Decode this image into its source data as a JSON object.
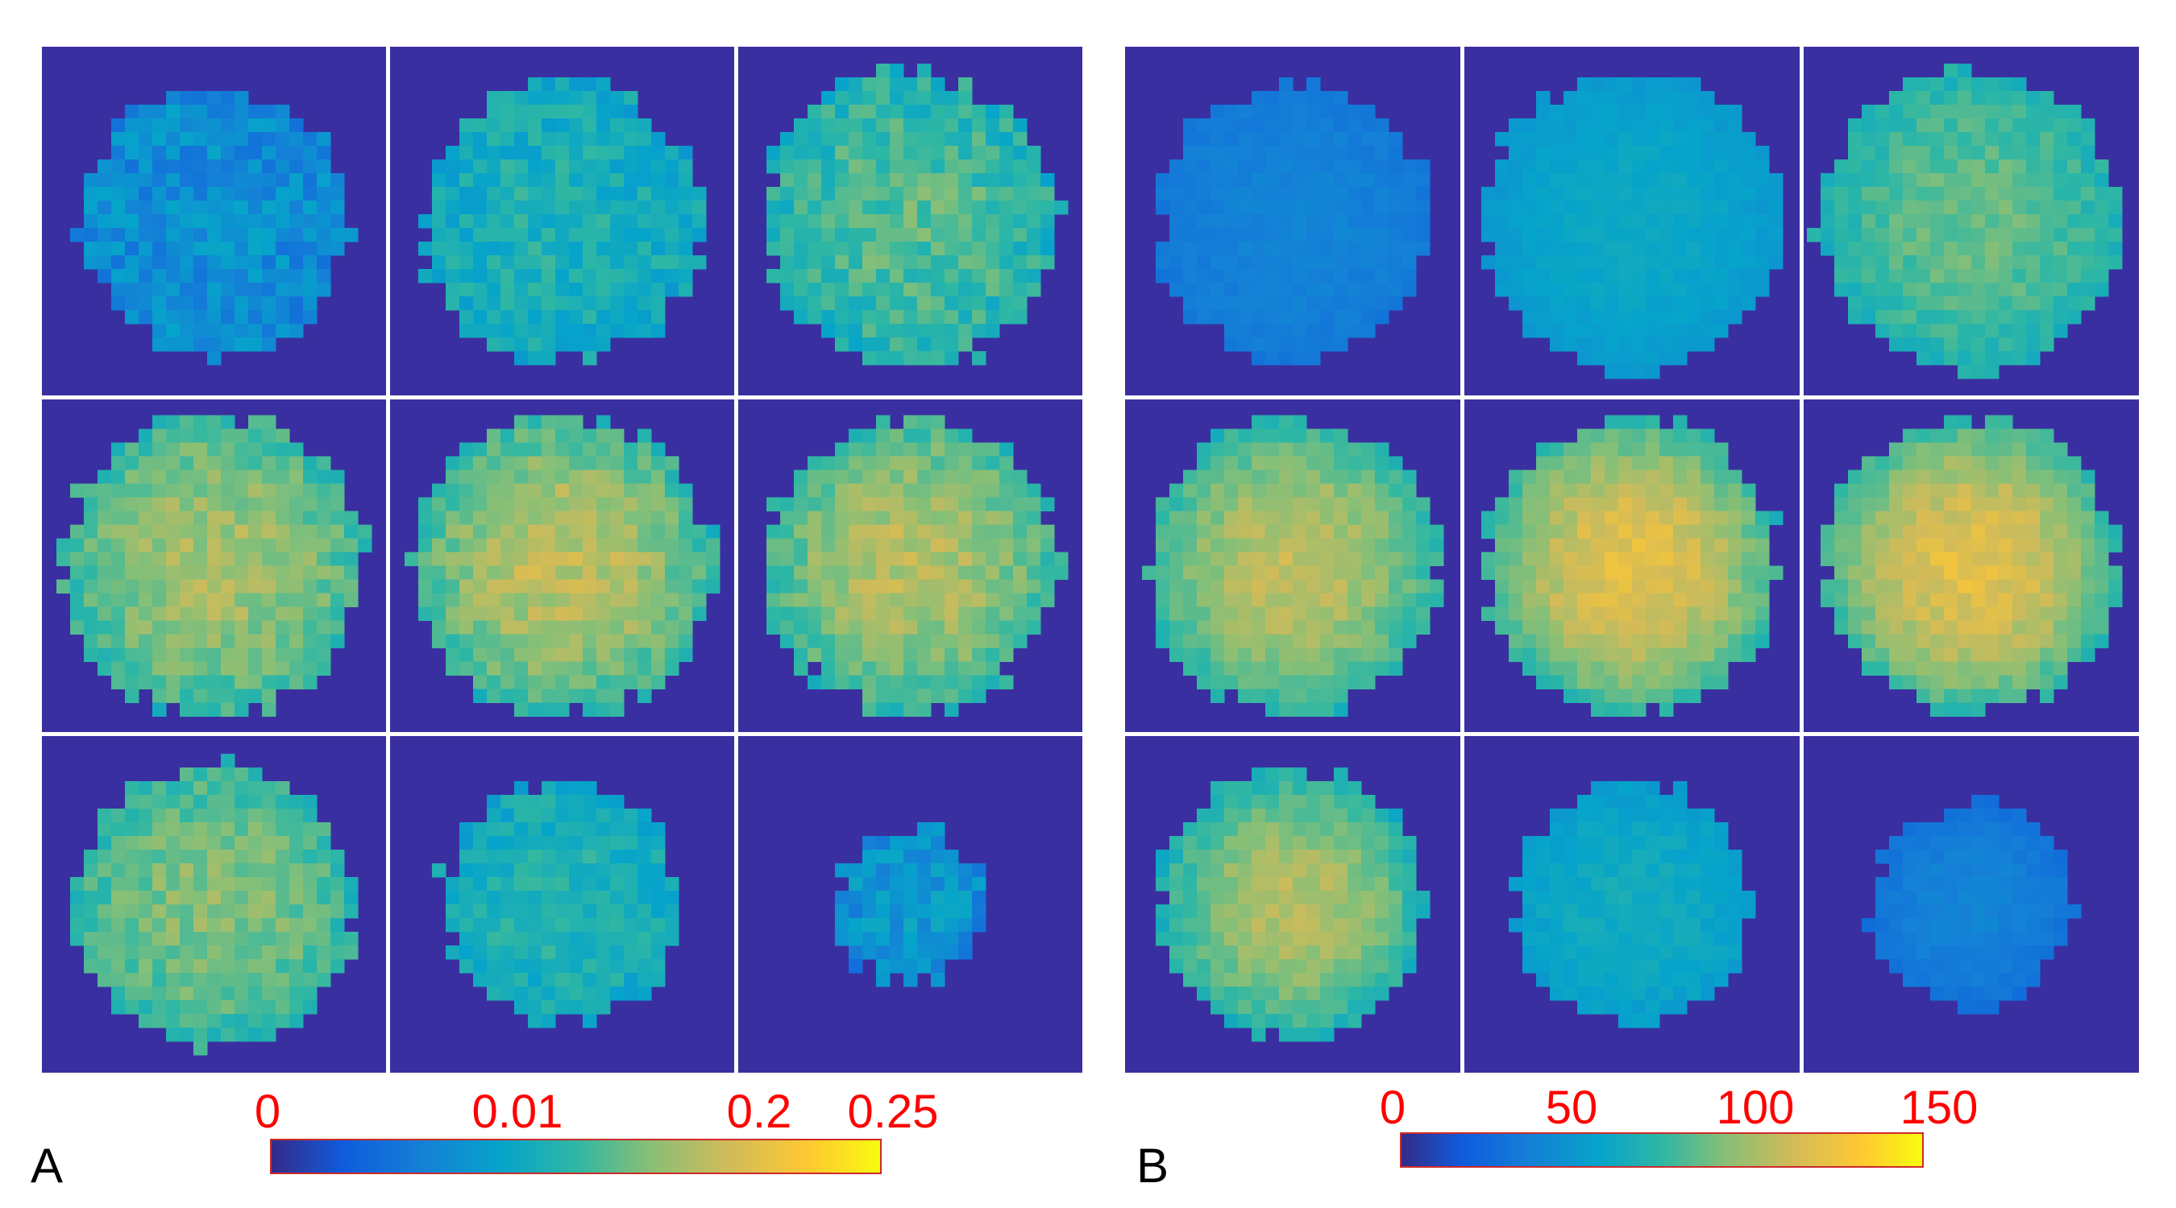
{
  "colors": {
    "background_dark": "#3a2fa0",
    "tick_label": "#ff0000",
    "colorbar_border": "#cc2a2a",
    "separator": "#ffffff",
    "panel_letter": "#000000"
  },
  "colormap": "parula",
  "panels": [
    {
      "letter": "A",
      "colorbar_ticks": [
        "0",
        "0.01",
        "0.2",
        "0.25"
      ]
    },
    {
      "letter": "B",
      "colorbar_ticks": [
        "0",
        "50",
        "100",
        "150"
      ]
    }
  ],
  "chart_data": [
    {
      "type": "heatmap",
      "panel": "A",
      "layout": "3x3 grid of pixel maps",
      "colorbar": {
        "ticks": [
          "0",
          "0.01",
          "0.2",
          "0.25"
        ],
        "range": [
          0,
          0.25
        ],
        "scale": "nonlinear"
      },
      "cells": [
        {
          "row": 1,
          "col": 1,
          "disk_radius": 0.39,
          "level_center": 0.3,
          "level_ring": 0.28,
          "noise": 0.09
        },
        {
          "row": 1,
          "col": 2,
          "disk_radius": 0.41,
          "level_center": 0.45,
          "level_ring": 0.4,
          "noise": 0.08
        },
        {
          "row": 1,
          "col": 3,
          "disk_radius": 0.43,
          "level_center": 0.55,
          "level_ring": 0.45,
          "noise": 0.09
        },
        {
          "row": 2,
          "col": 1,
          "disk_radius": 0.45,
          "level_center": 0.68,
          "level_ring": 0.5,
          "noise": 0.07
        },
        {
          "row": 2,
          "col": 2,
          "disk_radius": 0.45,
          "level_center": 0.72,
          "level_ring": 0.5,
          "noise": 0.07
        },
        {
          "row": 2,
          "col": 3,
          "disk_radius": 0.44,
          "level_center": 0.7,
          "level_ring": 0.5,
          "noise": 0.07
        },
        {
          "row": 3,
          "col": 1,
          "disk_radius": 0.42,
          "level_center": 0.63,
          "level_ring": 0.48,
          "noise": 0.07
        },
        {
          "row": 3,
          "col": 2,
          "disk_radius": 0.36,
          "level_center": 0.47,
          "level_ring": 0.4,
          "noise": 0.07
        },
        {
          "row": 3,
          "col": 3,
          "disk_radius": 0.23,
          "level_center": 0.35,
          "level_ring": 0.28,
          "noise": 0.09
        }
      ]
    },
    {
      "type": "heatmap",
      "panel": "B",
      "layout": "3x3 grid of pixel maps",
      "colorbar": {
        "ticks": [
          "0",
          "50",
          "100",
          "150"
        ],
        "range": [
          0,
          150
        ],
        "scale": "linear"
      },
      "cells": [
        {
          "row": 1,
          "col": 1,
          "disk_radius": 0.41,
          "level_center": 0.26,
          "level_ring": 0.22,
          "noise": 0.02
        },
        {
          "row": 1,
          "col": 2,
          "disk_radius": 0.45,
          "level_center": 0.4,
          "level_ring": 0.33,
          "noise": 0.02
        },
        {
          "row": 1,
          "col": 3,
          "disk_radius": 0.45,
          "level_center": 0.58,
          "level_ring": 0.45,
          "noise": 0.05
        },
        {
          "row": 2,
          "col": 1,
          "disk_radius": 0.44,
          "level_center": 0.72,
          "level_ring": 0.48,
          "noise": 0.05
        },
        {
          "row": 2,
          "col": 2,
          "disk_radius": 0.44,
          "level_center": 0.8,
          "level_ring": 0.5,
          "noise": 0.05
        },
        {
          "row": 2,
          "col": 3,
          "disk_radius": 0.44,
          "level_center": 0.8,
          "level_ring": 0.5,
          "noise": 0.05
        },
        {
          "row": 3,
          "col": 1,
          "disk_radius": 0.4,
          "level_center": 0.7,
          "level_ring": 0.45,
          "noise": 0.05
        },
        {
          "row": 3,
          "col": 2,
          "disk_radius": 0.36,
          "level_center": 0.42,
          "level_ring": 0.35,
          "noise": 0.03
        },
        {
          "row": 3,
          "col": 3,
          "disk_radius": 0.3,
          "level_center": 0.26,
          "level_ring": 0.2,
          "noise": 0.02
        }
      ]
    }
  ]
}
